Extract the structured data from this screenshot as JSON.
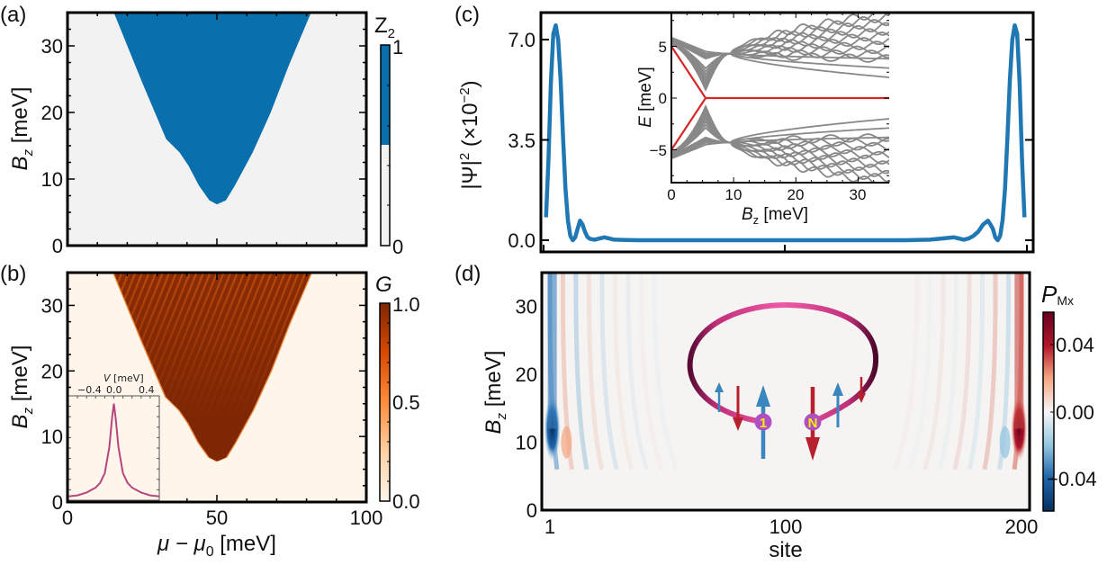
{
  "chart_data": [
    {
      "panel": "(a)",
      "type": "heatmap",
      "title": "",
      "xlabel": "μ − μ0 [meV]",
      "ylabel": "Bz [meV]",
      "xlim": [
        0,
        100
      ],
      "ylim": [
        0,
        35
      ],
      "xticks": [],
      "yticks": [
        "0",
        "10",
        "20",
        "30"
      ],
      "colorbar": {
        "label": "Z2",
        "ticks": [
          "0",
          "1"
        ],
        "range": [
          0,
          1
        ],
        "colors": [
          "#f2f2f2",
          "#0a6fad"
        ]
      },
      "region_boundary": {
        "description": "Topological (Z2 = 1) V-shaped region",
        "left_edge": [
          [
            15.5,
            35
          ],
          [
            25,
            24.5
          ],
          [
            33,
            16
          ],
          [
            37.5,
            14
          ],
          [
            40.5,
            12
          ],
          [
            44,
            9
          ],
          [
            47.5,
            6.8
          ],
          [
            50,
            6.2
          ]
        ],
        "right_edge": [
          [
            50,
            6.2
          ],
          [
            53,
            6.8
          ],
          [
            56,
            9
          ],
          [
            62,
            14
          ],
          [
            68,
            20
          ],
          [
            74,
            27
          ],
          [
            81.5,
            35
          ]
        ],
        "min_point": {
          "mu": 50,
          "Bz": 6.2
        }
      }
    },
    {
      "panel": "(b)",
      "type": "heatmap",
      "xlabel": "μ − μ0 [meV]",
      "ylabel": "Bz [meV]",
      "xlim": [
        0,
        100
      ],
      "ylim": [
        0,
        35
      ],
      "xticks": [
        "0",
        "50",
        "100"
      ],
      "yticks": [
        "0",
        "10",
        "20",
        "30"
      ],
      "colorbar": {
        "label": "G",
        "ticks": [
          "0.0",
          "0.5",
          "1.0"
        ],
        "range": [
          0,
          1
        ],
        "colors": [
          "#fff5eb",
          "#fdae6b",
          "#e6550d",
          "#7f2704"
        ]
      },
      "inset": {
        "type": "line",
        "xlabel": "V [meV]",
        "xticks": [
          "−0.4",
          "0.0",
          "0.4"
        ],
        "xlim": [
          -0.5,
          0.5
        ],
        "series": [
          {
            "name": "G(V)",
            "color": "#b5477e",
            "x": [
              -0.5,
              -0.4,
              -0.3,
              -0.2,
              -0.15,
              -0.1,
              -0.05,
              -0.02,
              0,
              0.02,
              0.05,
              0.1,
              0.15,
              0.2,
              0.3,
              0.4,
              0.5
            ],
            "y": [
              0.04,
              0.05,
              0.08,
              0.13,
              0.18,
              0.28,
              0.55,
              0.85,
              1.0,
              0.85,
              0.55,
              0.28,
              0.18,
              0.13,
              0.08,
              0.05,
              0.04
            ]
          }
        ]
      }
    },
    {
      "panel": "(c)",
      "type": "line",
      "xlabel": "",
      "ylabel": "|Ψ|² (×10⁻²)",
      "xlim": [
        1,
        200
      ],
      "ylim": [
        -0.3,
        8.0
      ],
      "yticks": [
        "0.0",
        "3.5",
        "7.0"
      ],
      "series": [
        {
          "name": "|Ψ|²",
          "color": "#1f77b4",
          "x": [
            2,
            3,
            4,
            5,
            6,
            7,
            8,
            9,
            10,
            11,
            12,
            13,
            14,
            15,
            16,
            17,
            18,
            19,
            20,
            22,
            24,
            26,
            28,
            30,
            35,
            40,
            50,
            60,
            100,
            140,
            150,
            160,
            165,
            170,
            172,
            174,
            176,
            178,
            180,
            182,
            184,
            185,
            186,
            187,
            188,
            189,
            190,
            191,
            192,
            193,
            194,
            195,
            196,
            197,
            198,
            199
          ],
          "y": [
            0.8,
            2.8,
            5.5,
            7.2,
            7.5,
            7.0,
            5.6,
            3.6,
            1.8,
            0.7,
            0.15,
            0.0,
            0.1,
            0.4,
            0.68,
            0.55,
            0.3,
            0.12,
            0.05,
            0.02,
            0.06,
            0.1,
            0.06,
            0.02,
            0.01,
            0.0,
            0.0,
            0.0,
            0.0,
            0.0,
            0.0,
            0.02,
            0.06,
            0.1,
            0.06,
            0.02,
            0.06,
            0.15,
            0.3,
            0.55,
            0.68,
            0.55,
            0.4,
            0.1,
            0.0,
            0.15,
            0.7,
            1.8,
            3.6,
            5.6,
            7.0,
            7.5,
            7.2,
            5.5,
            2.8,
            0.8
          ]
        }
      ],
      "inset": {
        "type": "line",
        "xlabel": "Bz [meV]",
        "ylabel": "E [meV]",
        "xlim": [
          0,
          35
        ],
        "ylim": [
          -8,
          8
        ],
        "xticks": [
          "0",
          "10",
          "20",
          "30"
        ],
        "yticks": [
          "−5",
          "0",
          "5"
        ],
        "series_colors": {
          "bulk": "#808080",
          "majorana": "#d62728"
        },
        "majorana_branch": {
          "x": [
            0,
            5.5,
            35
          ],
          "y_upper": [
            5,
            0,
            0
          ],
          "y_lower": [
            -5,
            0,
            0
          ]
        }
      }
    },
    {
      "panel": "(d)",
      "type": "heatmap",
      "xlabel": "site",
      "ylabel": "Bz [meV]",
      "xlim": [
        1,
        200
      ],
      "ylim": [
        0,
        35
      ],
      "xticks": [
        "1",
        "100",
        "200"
      ],
      "yticks": [
        "0",
        "10",
        "20",
        "30"
      ],
      "colorbar": {
        "label": "PMx",
        "ticks": [
          "−0.04",
          "0.00",
          "0.04"
        ],
        "range": [
          -0.06,
          0.06
        ],
        "colors": [
          "#053061",
          "#2166ac",
          "#92c5de",
          "#f7f7f7",
          "#f4a582",
          "#b2182b",
          "#67001f"
        ]
      },
      "features": [
        {
          "site": 2,
          "sign": "negative",
          "Bz_range": [
            6,
            35
          ],
          "strength": -0.06
        },
        {
          "site": 8,
          "sign": "positive",
          "Bz_range": [
            6,
            15
          ],
          "strength": 0.015
        },
        {
          "site": 199,
          "sign": "positive",
          "Bz_range": [
            6,
            35
          ],
          "strength": 0.06
        },
        {
          "site": 193,
          "sign": "negative",
          "Bz_range": [
            6,
            15
          ],
          "strength": -0.015
        }
      ],
      "schematic": {
        "description": "Ring of N sites with spin arrows",
        "node_labels": [
          "1",
          "N"
        ],
        "ring_color": "#e8489a",
        "arrow_colors": {
          "up": "#3a86bf",
          "down": "#b8202e"
        }
      }
    }
  ],
  "labels": {
    "panel_a": "(a)",
    "panel_b": "(b)",
    "panel_c": "(c)",
    "panel_d": "(d)",
    "a_ylabel_main": "B",
    "a_ylabel_sub": "z",
    "a_ylabel_unit": " [meV]",
    "a_cbar_main": "Z",
    "a_cbar_sub": "2",
    "a_cbar_top": "1",
    "a_cbar_bot": "0",
    "b_cbar_label": "G",
    "b_cbar_ticks": [
      "1.0",
      "0.5",
      "0.0"
    ],
    "b_inset_xlabel_main": "V",
    "b_inset_xlabel_unit": " [meV]",
    "b_inset_xticks": [
      "−0.4",
      "0.0",
      "0.4"
    ],
    "b_xticks": [
      "0",
      "50",
      "100"
    ],
    "b_xlabel": "μ − μ",
    "b_xlabel_sub": "0",
    "b_xlabel_unit": " [meV]",
    "yticks_bz": [
      "0",
      "10",
      "20",
      "30"
    ],
    "c_yticks": [
      "0.0",
      "3.5",
      "7.0"
    ],
    "c_ylabel": "|Ψ|",
    "c_ylabel_sup": "2",
    "c_ylabel_rest": "  (×10",
    "c_ylabel_exp": "−2",
    "c_ylabel_close": ")",
    "c_inset_xticks": [
      "0",
      "10",
      "20",
      "30"
    ],
    "c_inset_yticks": [
      "5",
      "0",
      "−5"
    ],
    "c_inset_xlabel_main": "B",
    "c_inset_xlabel_sub": "z",
    "c_inset_xlabel_unit": " [meV]",
    "c_inset_ylabel": "E",
    "c_inset_ylabel_unit": " [meV]",
    "d_xticks": [
      "1",
      "100",
      "200"
    ],
    "d_xlabel": "site",
    "d_cbar_main": "P",
    "d_cbar_sub": "Mx",
    "d_cbar_ticks": [
      "0.04",
      "0.00",
      "−0.04"
    ],
    "node_1": "1",
    "node_N": "N"
  }
}
